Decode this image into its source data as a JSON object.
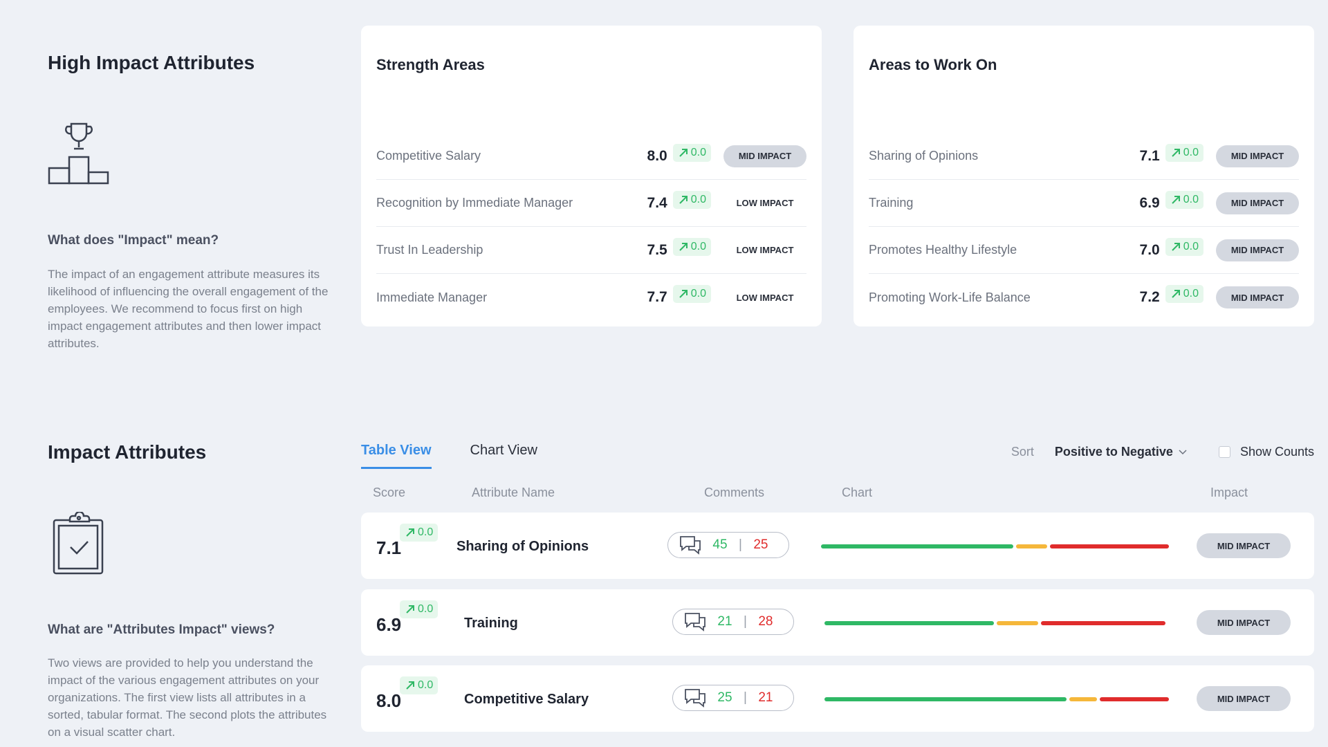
{
  "high_impact": {
    "title": "High Impact Attributes",
    "question": "What does \"Impact\" mean?",
    "description": "The impact of an engagement attribute measures its likelihood of influencing the overall engagement of the employees. We recommend to focus first on high impact engagement attributes and then lower impact attributes."
  },
  "strength": {
    "title": "Strength Areas",
    "rows": [
      {
        "name": "Competitive Salary",
        "score": "8.0",
        "trend": "0.0",
        "impact": "MID IMPACT",
        "level": "mid"
      },
      {
        "name": "Recognition by Immediate Manager",
        "score": "7.4",
        "trend": "0.0",
        "impact": "LOW IMPACT",
        "level": "low"
      },
      {
        "name": "Trust In Leadership",
        "score": "7.5",
        "trend": "0.0",
        "impact": "LOW IMPACT",
        "level": "low"
      },
      {
        "name": "Immediate Manager",
        "score": "7.7",
        "trend": "0.0",
        "impact": "LOW IMPACT",
        "level": "low"
      }
    ]
  },
  "work_on": {
    "title": "Areas to Work On",
    "rows": [
      {
        "name": "Sharing of Opinions",
        "score": "7.1",
        "trend": "0.0",
        "impact": "MID IMPACT",
        "level": "mid"
      },
      {
        "name": "Training",
        "score": "6.9",
        "trend": "0.0",
        "impact": "MID IMPACT",
        "level": "mid"
      },
      {
        "name": "Promotes Healthy Lifestyle",
        "score": "7.0",
        "trend": "0.0",
        "impact": "MID IMPACT",
        "level": "mid"
      },
      {
        "name": "Promoting Work-Life Balance",
        "score": "7.2",
        "trend": "0.0",
        "impact": "MID IMPACT",
        "level": "mid"
      }
    ]
  },
  "impact_attrs": {
    "title": "Impact Attributes",
    "question": "What are \"Attributes Impact\" views?",
    "description": "Two views are provided to help you understand the impact of the various engagement attributes on your organizations. The first view lists all attributes in a sorted, tabular format. The second plots the attributes on a visual scatter chart."
  },
  "tabs": [
    {
      "label": "Table View",
      "active": true
    },
    {
      "label": "Chart View",
      "active": false
    }
  ],
  "sort": {
    "label": "Sort",
    "value": "Positive to Negative",
    "show_counts": "Show Counts"
  },
  "columns": {
    "score": "Score",
    "name": "Attribute Name",
    "comments": "Comments",
    "chart": "Chart",
    "impact": "Impact"
  },
  "table": [
    {
      "score": "7.1",
      "trend": "0.0",
      "name": "Sharing of Opinions",
      "pos": "45",
      "neg": "25",
      "impact": "MID IMPACT",
      "bar": {
        "green": 0.55,
        "yellow": 0.09,
        "red": 0.34
      }
    },
    {
      "score": "6.9",
      "trend": "0.0",
      "name": "Training",
      "pos": "21",
      "neg": "28",
      "impact": "MID IMPACT",
      "bar": {
        "green": 0.49,
        "yellow": 0.12,
        "red": 0.36
      }
    },
    {
      "score": "8.0",
      "trend": "0.0",
      "name": "Competitive Salary",
      "pos": "25",
      "neg": "21",
      "impact": "MID IMPACT",
      "bar": {
        "green": 0.7,
        "yellow": 0.08,
        "red": 0.2
      }
    }
  ],
  "colors": {
    "green": "#2fb865",
    "yellow": "#f5b73a",
    "red": "#e02c2c",
    "accent": "#3a8ee6"
  }
}
